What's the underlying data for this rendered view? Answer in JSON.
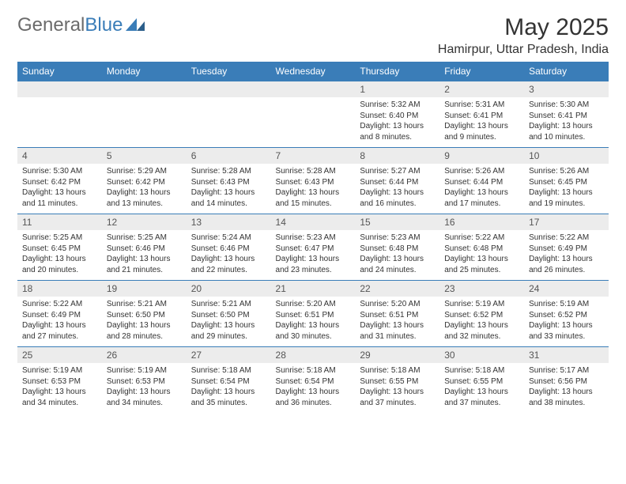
{
  "brand": {
    "part1": "General",
    "part2": "Blue"
  },
  "title": "May 2025",
  "location": "Hamirpur, Uttar Pradesh, India",
  "colors": {
    "accent": "#3a7db8",
    "header_text": "#ffffff",
    "daynum_bg": "#ececec",
    "border": "#3a7db8",
    "text": "#333333",
    "muted": "#6b6b6b"
  },
  "day_headers": [
    "Sunday",
    "Monday",
    "Tuesday",
    "Wednesday",
    "Thursday",
    "Friday",
    "Saturday"
  ],
  "weeks": [
    [
      null,
      null,
      null,
      null,
      {
        "n": "1",
        "sunrise": "5:32 AM",
        "sunset": "6:40 PM",
        "daylight": "13 hours and 8 minutes."
      },
      {
        "n": "2",
        "sunrise": "5:31 AM",
        "sunset": "6:41 PM",
        "daylight": "13 hours and 9 minutes."
      },
      {
        "n": "3",
        "sunrise": "5:30 AM",
        "sunset": "6:41 PM",
        "daylight": "13 hours and 10 minutes."
      }
    ],
    [
      {
        "n": "4",
        "sunrise": "5:30 AM",
        "sunset": "6:42 PM",
        "daylight": "13 hours and 11 minutes."
      },
      {
        "n": "5",
        "sunrise": "5:29 AM",
        "sunset": "6:42 PM",
        "daylight": "13 hours and 13 minutes."
      },
      {
        "n": "6",
        "sunrise": "5:28 AM",
        "sunset": "6:43 PM",
        "daylight": "13 hours and 14 minutes."
      },
      {
        "n": "7",
        "sunrise": "5:28 AM",
        "sunset": "6:43 PM",
        "daylight": "13 hours and 15 minutes."
      },
      {
        "n": "8",
        "sunrise": "5:27 AM",
        "sunset": "6:44 PM",
        "daylight": "13 hours and 16 minutes."
      },
      {
        "n": "9",
        "sunrise": "5:26 AM",
        "sunset": "6:44 PM",
        "daylight": "13 hours and 17 minutes."
      },
      {
        "n": "10",
        "sunrise": "5:26 AM",
        "sunset": "6:45 PM",
        "daylight": "13 hours and 19 minutes."
      }
    ],
    [
      {
        "n": "11",
        "sunrise": "5:25 AM",
        "sunset": "6:45 PM",
        "daylight": "13 hours and 20 minutes."
      },
      {
        "n": "12",
        "sunrise": "5:25 AM",
        "sunset": "6:46 PM",
        "daylight": "13 hours and 21 minutes."
      },
      {
        "n": "13",
        "sunrise": "5:24 AM",
        "sunset": "6:46 PM",
        "daylight": "13 hours and 22 minutes."
      },
      {
        "n": "14",
        "sunrise": "5:23 AM",
        "sunset": "6:47 PM",
        "daylight": "13 hours and 23 minutes."
      },
      {
        "n": "15",
        "sunrise": "5:23 AM",
        "sunset": "6:48 PM",
        "daylight": "13 hours and 24 minutes."
      },
      {
        "n": "16",
        "sunrise": "5:22 AM",
        "sunset": "6:48 PM",
        "daylight": "13 hours and 25 minutes."
      },
      {
        "n": "17",
        "sunrise": "5:22 AM",
        "sunset": "6:49 PM",
        "daylight": "13 hours and 26 minutes."
      }
    ],
    [
      {
        "n": "18",
        "sunrise": "5:22 AM",
        "sunset": "6:49 PM",
        "daylight": "13 hours and 27 minutes."
      },
      {
        "n": "19",
        "sunrise": "5:21 AM",
        "sunset": "6:50 PM",
        "daylight": "13 hours and 28 minutes."
      },
      {
        "n": "20",
        "sunrise": "5:21 AM",
        "sunset": "6:50 PM",
        "daylight": "13 hours and 29 minutes."
      },
      {
        "n": "21",
        "sunrise": "5:20 AM",
        "sunset": "6:51 PM",
        "daylight": "13 hours and 30 minutes."
      },
      {
        "n": "22",
        "sunrise": "5:20 AM",
        "sunset": "6:51 PM",
        "daylight": "13 hours and 31 minutes."
      },
      {
        "n": "23",
        "sunrise": "5:19 AM",
        "sunset": "6:52 PM",
        "daylight": "13 hours and 32 minutes."
      },
      {
        "n": "24",
        "sunrise": "5:19 AM",
        "sunset": "6:52 PM",
        "daylight": "13 hours and 33 minutes."
      }
    ],
    [
      {
        "n": "25",
        "sunrise": "5:19 AM",
        "sunset": "6:53 PM",
        "daylight": "13 hours and 34 minutes."
      },
      {
        "n": "26",
        "sunrise": "5:19 AM",
        "sunset": "6:53 PM",
        "daylight": "13 hours and 34 minutes."
      },
      {
        "n": "27",
        "sunrise": "5:18 AM",
        "sunset": "6:54 PM",
        "daylight": "13 hours and 35 minutes."
      },
      {
        "n": "28",
        "sunrise": "5:18 AM",
        "sunset": "6:54 PM",
        "daylight": "13 hours and 36 minutes."
      },
      {
        "n": "29",
        "sunrise": "5:18 AM",
        "sunset": "6:55 PM",
        "daylight": "13 hours and 37 minutes."
      },
      {
        "n": "30",
        "sunrise": "5:18 AM",
        "sunset": "6:55 PM",
        "daylight": "13 hours and 37 minutes."
      },
      {
        "n": "31",
        "sunrise": "5:17 AM",
        "sunset": "6:56 PM",
        "daylight": "13 hours and 38 minutes."
      }
    ]
  ],
  "labels": {
    "sunrise": "Sunrise: ",
    "sunset": "Sunset: ",
    "daylight": "Daylight: "
  }
}
